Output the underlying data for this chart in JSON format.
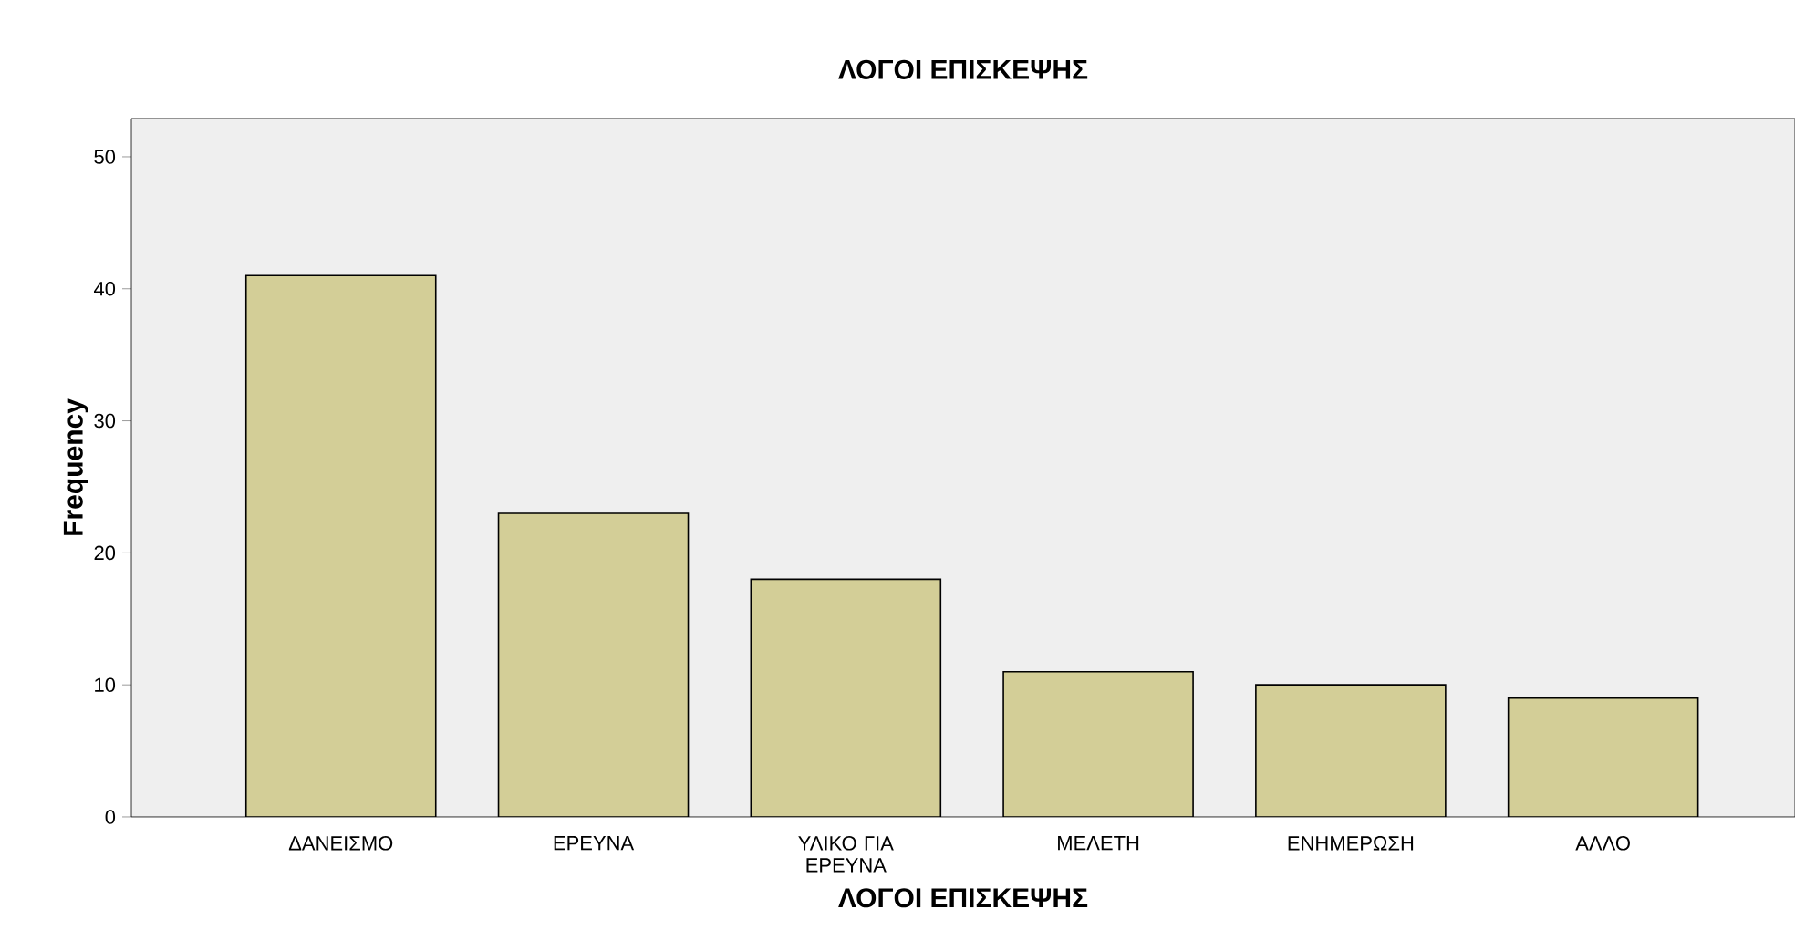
{
  "chart_data": {
    "type": "bar",
    "title": "ΛΟΓΟΙ ΕΠΙΣΚΕΨΗΣ",
    "xlabel": "ΛΟΓΟΙ ΕΠΙΣΚΕΨΗΣ",
    "ylabel": "Frequency",
    "categories": [
      "ΔΑΝΕΙΣΜΟ",
      "ΕΡΕΥΝΑ",
      "ΥΛΙΚΟ ΓΙΑ ΕΡΕΥΝΑ",
      "ΜΕΛΕΤΗ",
      "ΕΝΗΜΕΡΩΣΗ",
      "ΑΛΛΟ"
    ],
    "values": [
      41,
      23,
      18,
      11,
      10,
      9
    ],
    "color": "#d3ce97",
    "ylim": [
      0,
      52.9
    ],
    "yticks": [
      0,
      10,
      20,
      30,
      40,
      50
    ]
  }
}
